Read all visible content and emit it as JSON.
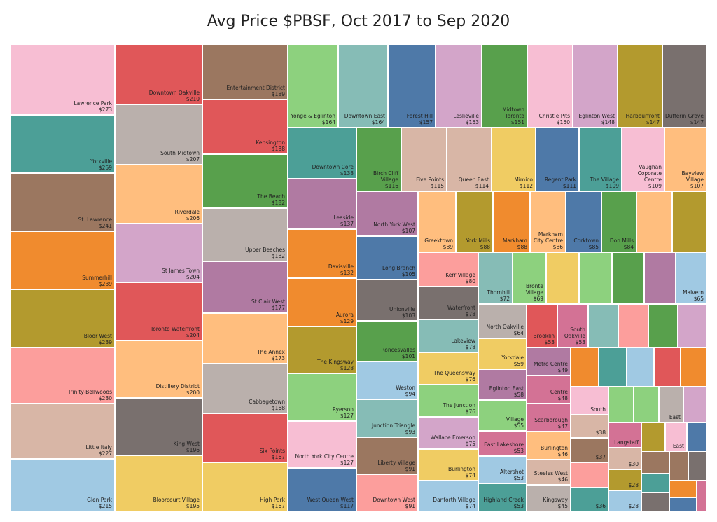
{
  "title": "Avg Price $PBSF, Oct 2017 to Sep 2020",
  "chart_data": {
    "type": "treemap",
    "title": "Avg Price $PBSF, Oct 2017 to Sep 2020",
    "unit": "$ per sq ft",
    "items": [
      {
        "name": "Lawrence Park",
        "value": 273,
        "color": "#f7bed3"
      },
      {
        "name": "Yorkville",
        "value": 259,
        "color": "#4c9f97"
      },
      {
        "name": "St. Lawrence",
        "value": 241,
        "color": "#9b7760"
      },
      {
        "name": "Summerhill",
        "value": 239,
        "color": "#f08b2e"
      },
      {
        "name": "Bloor West",
        "value": 239,
        "color": "#b39a2e"
      },
      {
        "name": "Trinity-Bellwoods",
        "value": 230,
        "color": "#fc9e9c"
      },
      {
        "name": "Little Italy",
        "value": 227,
        "color": "#d8b6a6"
      },
      {
        "name": "Glen Park",
        "value": 215,
        "color": "#a0c9e3"
      },
      {
        "name": "Downtown Oakville",
        "value": 210,
        "color": "#e05759"
      },
      {
        "name": "South Midtown",
        "value": 207,
        "color": "#bab0ac"
      },
      {
        "name": "Riverdale",
        "value": 206,
        "color": "#ffbe7e"
      },
      {
        "name": "St James Town",
        "value": 204,
        "color": "#d3a5c9"
      },
      {
        "name": "Toronto Waterfront",
        "value": 204,
        "color": "#e05759"
      },
      {
        "name": "Distillery District",
        "value": 200,
        "color": "#ffbe7e"
      },
      {
        "name": "King West",
        "value": 196,
        "color": "#79706e"
      },
      {
        "name": "Bloorcourt Village",
        "value": 195,
        "color": "#f0cc63"
      },
      {
        "name": "Entertainment District",
        "value": 189,
        "color": "#9b7760"
      },
      {
        "name": "Kensington",
        "value": 188,
        "color": "#e05759"
      },
      {
        "name": "The Beach",
        "value": 182,
        "color": "#58a04c"
      },
      {
        "name": "Upper Beaches",
        "value": 182,
        "color": "#bab0ac"
      },
      {
        "name": "St Clair West",
        "value": 177,
        "color": "#b07aa2"
      },
      {
        "name": "The Annex",
        "value": 173,
        "color": "#ffbe7e"
      },
      {
        "name": "Cabbagetown",
        "value": 168,
        "color": "#bab0ac"
      },
      {
        "name": "Six Points",
        "value": 167,
        "color": "#e05759"
      },
      {
        "name": "High Park",
        "value": 167,
        "color": "#f0cc63"
      },
      {
        "name": "Yonge & Eglinton",
        "value": 164,
        "color": "#8dd17e"
      },
      {
        "name": "Downtown East",
        "value": 164,
        "color": "#86bcb6"
      },
      {
        "name": "Forest Hill",
        "value": 157,
        "color": "#4e79a8"
      },
      {
        "name": "Leslieville",
        "value": 153,
        "color": "#d3a5c9"
      },
      {
        "name": "Midtown Toronto",
        "value": 151,
        "color": "#58a04c"
      },
      {
        "name": "Christie Pits",
        "value": 150,
        "color": "#f7bed3"
      },
      {
        "name": "Eglinton West",
        "value": 148,
        "color": "#d3a5c9"
      },
      {
        "name": "Harbourfront",
        "value": 147,
        "color": "#b39a2e"
      },
      {
        "name": "Dufferin Grove",
        "value": 147,
        "color": "#79706e"
      },
      {
        "name": "Downtown Core",
        "value": 138,
        "color": "#4c9f97"
      },
      {
        "name": "Leaside",
        "value": 137,
        "color": "#b07aa2"
      },
      {
        "name": "Davisville",
        "value": 132,
        "color": "#f08b2e"
      },
      {
        "name": "Aurora",
        "value": 129,
        "color": "#f08b2e"
      },
      {
        "name": "The Kingsway",
        "value": 128,
        "color": "#b39a2e"
      },
      {
        "name": "Ryerson",
        "value": 127,
        "color": "#8dd17e"
      },
      {
        "name": "North York City Centre",
        "value": 127,
        "color": "#f7bed3"
      },
      {
        "name": "West Queen West",
        "value": 117,
        "color": "#4e79a8"
      },
      {
        "name": "Birch Cliff Village",
        "value": 116,
        "color": "#58a04c"
      },
      {
        "name": "Five Points",
        "value": 115,
        "color": "#d8b6a6"
      },
      {
        "name": "Queen East",
        "value": 114,
        "color": "#d8b6a6"
      },
      {
        "name": "Mimico",
        "value": 112,
        "color": "#f0cc63"
      },
      {
        "name": "Regent Park",
        "value": 111,
        "color": "#4e79a8"
      },
      {
        "name": "The Village",
        "value": 109,
        "color": "#4c9f97"
      },
      {
        "name": "Vaughan Coporate Centre",
        "value": 109,
        "color": "#f7bed3"
      },
      {
        "name": "Bayview Village",
        "value": 107,
        "color": "#ffbe7e"
      },
      {
        "name": "North York West",
        "value": 107,
        "color": "#b07aa2"
      },
      {
        "name": "Long Branch",
        "value": 105,
        "color": "#4e79a8"
      },
      {
        "name": "Unionville",
        "value": 103,
        "color": "#79706e"
      },
      {
        "name": "Roncesvalles",
        "value": 101,
        "color": "#58a04c"
      },
      {
        "name": "Weston",
        "value": 94,
        "color": "#a0c9e3"
      },
      {
        "name": "Junction Triangle",
        "value": 93,
        "color": "#86bcb6"
      },
      {
        "name": "Liberty Village",
        "value": 91,
        "color": "#9b7760"
      },
      {
        "name": "Downtown West",
        "value": 91,
        "color": "#fc9e9c"
      },
      {
        "name": "Greektown",
        "value": 89,
        "color": "#ffbe7e"
      },
      {
        "name": "York Mills",
        "value": 88,
        "color": "#b39a2e"
      },
      {
        "name": "Markham",
        "value": 88,
        "color": "#f08b2e"
      },
      {
        "name": "Markham City Centre",
        "value": 86,
        "color": "#ffbe7e"
      },
      {
        "name": "Corktown",
        "value": 85,
        "color": "#4e79a8"
      },
      {
        "name": "Don Mills",
        "value": 84,
        "color": "#58a04c"
      },
      {
        "name": "Kerr Village",
        "value": 80,
        "color": "#fc9e9c"
      },
      {
        "name": "Waterfront",
        "value": 78,
        "color": "#79706e"
      },
      {
        "name": "Lakeview",
        "value": 78,
        "color": "#86bcb6"
      },
      {
        "name": "The Queensway",
        "value": 76,
        "color": "#f0cc63"
      },
      {
        "name": "The Junction",
        "value": 76,
        "color": "#8dd17e"
      },
      {
        "name": "Wallace Emerson",
        "value": 75,
        "color": "#d3a5c9"
      },
      {
        "name": "Burlington",
        "value": 74,
        "color": "#f0cc63"
      },
      {
        "name": "Danforth Village",
        "value": 74,
        "color": "#a0c9e3"
      },
      {
        "name": "Thornhill",
        "value": 72,
        "color": "#86bcb6"
      },
      {
        "name": "Bronte Village",
        "value": 69,
        "color": "#8dd17e"
      },
      {
        "name": "Malvern",
        "value": 65,
        "color": "#a0c9e3"
      },
      {
        "name": "North Oakville",
        "value": 64,
        "color": "#bab0ac"
      },
      {
        "name": "Yorkdale",
        "value": 59,
        "color": "#f0cc63"
      },
      {
        "name": "Eglinton East",
        "value": 58,
        "color": "#b07aa2"
      },
      {
        "name": "Village",
        "value": 55,
        "color": "#8dd17e"
      },
      {
        "name": "East Lakeshore",
        "value": 53,
        "color": "#d37295"
      },
      {
        "name": "Altershot",
        "value": 53,
        "color": "#a0c9e3"
      },
      {
        "name": "Highland Creek",
        "value": 53,
        "color": "#4c9f97"
      },
      {
        "name": "Brooklin",
        "value": 53,
        "color": "#e05759"
      },
      {
        "name": "South Oakville",
        "value": 53,
        "color": "#d37295"
      },
      {
        "name": "Metro Centre",
        "value": 49,
        "color": "#b07aa2"
      },
      {
        "name": "Centre",
        "value": 48,
        "color": "#d37295"
      },
      {
        "name": "Scarborough",
        "value": 47,
        "color": "#d37295"
      },
      {
        "name": "Burlington",
        "value": 46,
        "color": "#ffbe7e"
      },
      {
        "name": "Steeles West",
        "value": 46,
        "color": "#d8b6a6"
      },
      {
        "name": "Kingsway",
        "value": 45,
        "color": "#bab0ac"
      },
      {
        "name": "South",
        "value": null,
        "color": "#f7bed3"
      },
      {
        "name": "",
        "value": 38,
        "color": "#d8b6a6"
      },
      {
        "name": "",
        "value": 37,
        "color": "#9b7760"
      },
      {
        "name": "",
        "value": 36,
        "color": "#4c9f97"
      },
      {
        "name": "Langstaff",
        "value": null,
        "color": "#d37295"
      },
      {
        "name": "",
        "value": 30,
        "color": "#d8b6a6"
      },
      {
        "name": "",
        "value": 28,
        "color": "#b39a2e"
      },
      {
        "name": "",
        "value": 28,
        "color": "#a0c9e3"
      },
      {
        "name": "East",
        "value": null,
        "color": "#bab0ac"
      },
      {
        "name": "East",
        "value": null,
        "color": "#f7bed3"
      }
    ]
  }
}
